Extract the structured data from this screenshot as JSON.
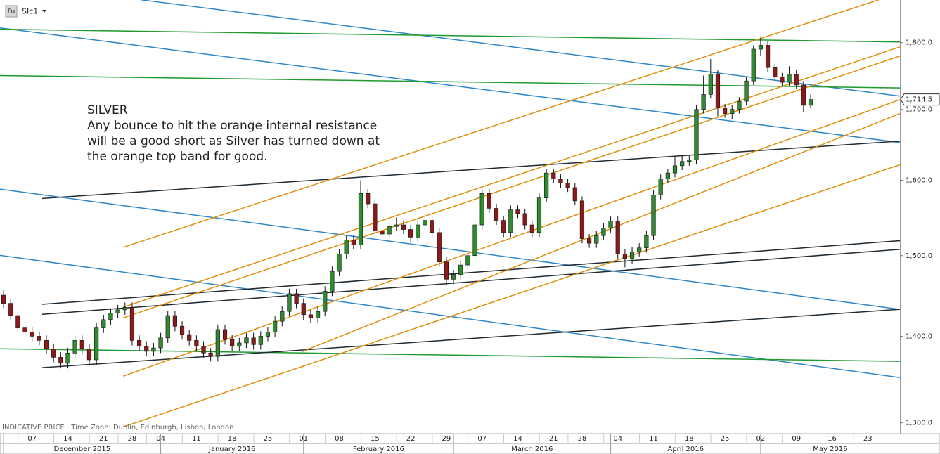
{
  "chart_data": {
    "type": "candlestick",
    "title": "SIc1",
    "icon": "Fu",
    "annotation": [
      "SILVER",
      "Any bounce to hit the orange internal resistance",
      "will be a good short as Silver has turned down at",
      "the orange top band for good."
    ],
    "footer": "INDICATIVE PRICE   Time Zone: Dublin, Edinburgh, Lisbon, London",
    "log_scale": true,
    "up_color": "#2e8b2e",
    "down_color": "#8b1a1a",
    "xlim": [
      -0.5,
      125.5
    ],
    "ylim": [
      1288,
      1867
    ],
    "yticks": [
      {
        "value": 1300,
        "label": "1,300.0"
      },
      {
        "value": 1400,
        "label": "1,400.0"
      },
      {
        "value": 1500,
        "label": "1,500.0"
      },
      {
        "value": 1600,
        "label": "1,600.0"
      },
      {
        "value": 1700,
        "label": "1,700.0"
      },
      {
        "value": 1800,
        "label": "1,800.0"
      }
    ],
    "xticks": [
      {
        "value": 4,
        "label": "07"
      },
      {
        "value": 9,
        "label": "14"
      },
      {
        "value": 14,
        "label": "21"
      },
      {
        "value": 18,
        "label": "28"
      },
      {
        "value": 22,
        "label": "04"
      },
      {
        "value": 27,
        "label": "11"
      },
      {
        "value": 32,
        "label": "18"
      },
      {
        "value": 37,
        "label": "25"
      },
      {
        "value": 42,
        "label": "01"
      },
      {
        "value": 47,
        "label": "08"
      },
      {
        "value": 52,
        "label": "15"
      },
      {
        "value": 57,
        "label": "22"
      },
      {
        "value": 62,
        "label": "29"
      },
      {
        "value": 67,
        "label": "07"
      },
      {
        "value": 72,
        "label": "14"
      },
      {
        "value": 77,
        "label": "21"
      },
      {
        "value": 81,
        "label": "28"
      },
      {
        "value": 86,
        "label": "04"
      },
      {
        "value": 91,
        "label": "11"
      },
      {
        "value": 96,
        "label": "18"
      },
      {
        "value": 101,
        "label": "25"
      },
      {
        "value": 106,
        "label": "02"
      },
      {
        "value": 111,
        "label": "09"
      },
      {
        "value": 116,
        "label": "16"
      },
      {
        "value": 121,
        "label": "23"
      }
    ],
    "month_ticks": [
      {
        "value": 0,
        "label": "December 2015"
      },
      {
        "value": 22,
        "label": "January 2016"
      },
      {
        "value": 42,
        "label": "February 2016"
      },
      {
        "value": 63,
        "label": "March 2016"
      },
      {
        "value": 85,
        "label": "April 2016"
      },
      {
        "value": 106,
        "label": "May 2016"
      }
    ],
    "last_price": {
      "value": 1714.5,
      "label": "1,714.5"
    },
    "open": [
      1450,
      1440,
      1425,
      1410,
      1405,
      1400,
      1395,
      1385,
      1375,
      1368,
      1380,
      1395,
      1385,
      1372,
      1410,
      1420,
      1428,
      1432,
      1435,
      1395,
      1388,
      1382,
      1386,
      1398,
      1425,
      1412,
      1402,
      1395,
      1388,
      1380,
      1376,
      1408,
      1396,
      1388,
      1392,
      1398,
      1390,
      1400,
      1405,
      1418,
      1430,
      1452,
      1440,
      1426,
      1422,
      1430,
      1455,
      1480,
      1502,
      1520,
      1514,
      1582,
      1568,
      1532,
      1528,
      1538,
      1540,
      1534,
      1524,
      1540,
      1546,
      1530,
      1492,
      1470,
      1476,
      1488,
      1500,
      1540,
      1582,
      1562,
      1546,
      1530,
      1560,
      1555,
      1540,
      1530,
      1576,
      1610,
      1602,
      1596,
      1590,
      1572,
      1522,
      1516,
      1526,
      1536,
      1545,
      1502,
      1496,
      1505,
      1510,
      1526,
      1580,
      1602,
      1610,
      1620,
      1626,
      1628,
      1700,
      1722,
      1752,
      1702,
      1694,
      1700,
      1712,
      1742,
      1790,
      1796,
      1762,
      1748,
      1740,
      1752,
      1736,
      1706
    ],
    "high": [
      1456,
      1446,
      1431,
      1416,
      1411,
      1406,
      1401,
      1391,
      1381,
      1386,
      1401,
      1401,
      1391,
      1416,
      1426,
      1434,
      1438,
      1441,
      1441,
      1401,
      1394,
      1392,
      1404,
      1431,
      1431,
      1418,
      1408,
      1401,
      1394,
      1386,
      1414,
      1414,
      1402,
      1398,
      1404,
      1404,
      1406,
      1411,
      1424,
      1436,
      1458,
      1458,
      1446,
      1432,
      1436,
      1461,
      1486,
      1508,
      1526,
      1526,
      1600,
      1588,
      1574,
      1538,
      1544,
      1550,
      1546,
      1540,
      1546,
      1556,
      1552,
      1536,
      1498,
      1482,
      1494,
      1506,
      1546,
      1588,
      1588,
      1568,
      1552,
      1566,
      1566,
      1561,
      1546,
      1582,
      1616,
      1616,
      1608,
      1602,
      1596,
      1578,
      1528,
      1532,
      1542,
      1551,
      1551,
      1508,
      1511,
      1516,
      1532,
      1586,
      1608,
      1616,
      1632,
      1634,
      1634,
      1706,
      1750,
      1775,
      1758,
      1708,
      1706,
      1718,
      1748,
      1796,
      1808,
      1802,
      1768,
      1754,
      1764,
      1758,
      1742,
      1722
    ],
    "low": [
      1434,
      1419,
      1404,
      1399,
      1394,
      1389,
      1379,
      1369,
      1362,
      1362,
      1374,
      1379,
      1366,
      1366,
      1404,
      1414,
      1422,
      1426,
      1389,
      1382,
      1376,
      1376,
      1380,
      1392,
      1406,
      1396,
      1389,
      1382,
      1374,
      1370,
      1370,
      1390,
      1382,
      1382,
      1386,
      1384,
      1384,
      1394,
      1399,
      1412,
      1424,
      1434,
      1420,
      1416,
      1416,
      1424,
      1449,
      1474,
      1496,
      1508,
      1508,
      1562,
      1526,
      1522,
      1522,
      1532,
      1528,
      1518,
      1518,
      1534,
      1524,
      1486,
      1462,
      1464,
      1470,
      1482,
      1494,
      1534,
      1556,
      1540,
      1524,
      1524,
      1549,
      1534,
      1524,
      1524,
      1570,
      1596,
      1590,
      1584,
      1566,
      1516,
      1510,
      1510,
      1520,
      1530,
      1496,
      1485,
      1490,
      1499,
      1504,
      1520,
      1574,
      1596,
      1604,
      1614,
      1620,
      1622,
      1694,
      1716,
      1690,
      1688,
      1686,
      1694,
      1706,
      1736,
      1780,
      1756,
      1742,
      1734,
      1734,
      1730,
      1696,
      1702
    ],
    "close": [
      1440,
      1425,
      1410,
      1405,
      1400,
      1395,
      1385,
      1375,
      1368,
      1380,
      1395,
      1385,
      1372,
      1410,
      1420,
      1428,
      1432,
      1435,
      1395,
      1388,
      1382,
      1386,
      1398,
      1425,
      1412,
      1402,
      1395,
      1388,
      1380,
      1376,
      1408,
      1396,
      1388,
      1392,
      1398,
      1390,
      1400,
      1405,
      1418,
      1430,
      1452,
      1440,
      1426,
      1422,
      1430,
      1455,
      1480,
      1502,
      1520,
      1514,
      1582,
      1568,
      1532,
      1528,
      1538,
      1540,
      1534,
      1524,
      1540,
      1546,
      1530,
      1492,
      1470,
      1476,
      1488,
      1500,
      1540,
      1582,
      1562,
      1546,
      1530,
      1560,
      1555,
      1540,
      1530,
      1576,
      1610,
      1602,
      1596,
      1590,
      1572,
      1522,
      1516,
      1526,
      1536,
      1545,
      1502,
      1496,
      1505,
      1510,
      1526,
      1580,
      1602,
      1610,
      1620,
      1626,
      1628,
      1700,
      1722,
      1752,
      1702,
      1694,
      1700,
      1712,
      1742,
      1790,
      1796,
      1762,
      1748,
      1740,
      1752,
      1736,
      1706,
      1714.5
    ],
    "lines": [
      {
        "color": "#2e86c8",
        "start": [
          19.19,
          1867.4
        ],
        "end": [
          125.5,
          1719.5
        ]
      },
      {
        "color": "#2e86c8",
        "start": [
          -0.5,
          1822.9
        ],
        "end": [
          125.5,
          1652.5
        ]
      },
      {
        "color": "#2e86c8",
        "start": [
          -0.5,
          1587.9
        ],
        "end": [
          125.5,
          1432.6
        ]
      },
      {
        "color": "#2e86c8",
        "start": [
          -0.5,
          1500.3
        ],
        "end": [
          125.5,
          1351.3
        ]
      },
      {
        "color": "#1f9a2f",
        "start": [
          -0.5,
          1820.8
        ],
        "end": [
          125.5,
          1801.1
        ]
      },
      {
        "color": "#1f9a2f",
        "start": [
          -0.5,
          1750.1
        ],
        "end": [
          125.5,
          1731.6
        ]
      },
      {
        "color": "#1f9a2f",
        "start": [
          -0.5,
          1385.1
        ],
        "end": [
          125.5,
          1370.2
        ]
      },
      {
        "color": "#1f2a33",
        "start": [
          5.41,
          1575.3
        ],
        "end": [
          125.5,
          1654.5
        ]
      },
      {
        "color": "#1f2a33",
        "start": [
          5.41,
          1438.8
        ],
        "end": [
          125.5,
          1519.3
        ]
      },
      {
        "color": "#1f2a33",
        "start": [
          5.41,
          1426.5
        ],
        "end": [
          125.5,
          1508.1
        ]
      },
      {
        "color": "#1f2a33",
        "start": [
          5.41,
          1362.8
        ],
        "end": [
          125.5,
          1432.6
        ]
      },
      {
        "color": "#e0900f",
        "start": [
          16.73,
          1510.7
        ],
        "end": [
          122.54,
          1867.4
        ]
      },
      {
        "color": "#e0900f",
        "start": [
          16.73,
          1435.2
        ],
        "end": [
          125.5,
          1793.5
        ]
      },
      {
        "color": "#e0900f",
        "start": [
          16.73,
          1422.2
        ],
        "end": [
          125.5,
          1779.6
        ]
      },
      {
        "color": "#e0900f",
        "start": [
          16.73,
          1352.9
        ],
        "end": [
          125.5,
          1714.3
        ]
      },
      {
        "color": "#e0900f",
        "start": [
          41.83,
          1381.8
        ],
        "end": [
          125.5,
          1694.0
        ]
      },
      {
        "color": "#e0900f",
        "start": [
          16.73,
          1295.4
        ],
        "end": [
          125.5,
          1621.4
        ]
      }
    ]
  }
}
